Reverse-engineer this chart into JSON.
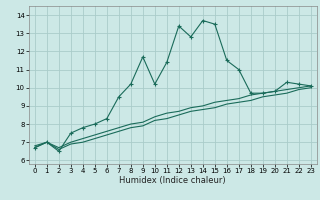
{
  "xlabel": "Humidex (Indice chaleur)",
  "background_color": "#cce8e6",
  "grid_color": "#aaccca",
  "line_color": "#1a6b5a",
  "xlim": [
    -0.5,
    23.5
  ],
  "ylim": [
    5.8,
    14.5
  ],
  "xticks": [
    0,
    1,
    2,
    3,
    4,
    5,
    6,
    7,
    8,
    9,
    10,
    11,
    12,
    13,
    14,
    15,
    16,
    17,
    18,
    19,
    20,
    21,
    22,
    23
  ],
  "yticks": [
    6,
    7,
    8,
    9,
    10,
    11,
    12,
    13,
    14
  ],
  "curve_main_x": [
    0,
    1,
    2,
    3,
    4,
    5,
    6,
    7,
    8,
    9,
    10,
    11,
    12,
    13,
    14,
    15,
    16,
    17,
    18,
    19,
    20,
    21,
    22,
    23
  ],
  "curve_main_y": [
    6.7,
    7.0,
    6.5,
    7.5,
    7.8,
    8.0,
    8.3,
    9.5,
    10.2,
    11.7,
    10.2,
    11.4,
    13.4,
    12.8,
    13.7,
    13.5,
    11.5,
    11.0,
    9.7,
    9.7,
    9.8,
    10.3,
    10.2,
    10.1
  ],
  "curve_line1_x": [
    0,
    1,
    2,
    3,
    4,
    5,
    6,
    7,
    8,
    9,
    10,
    11,
    12,
    13,
    14,
    15,
    16,
    17,
    18,
    19,
    20,
    21,
    22,
    23
  ],
  "curve_line1_y": [
    6.7,
    7.0,
    6.6,
    6.9,
    7.0,
    7.2,
    7.4,
    7.6,
    7.8,
    7.9,
    8.2,
    8.3,
    8.5,
    8.7,
    8.8,
    8.9,
    9.1,
    9.2,
    9.3,
    9.5,
    9.6,
    9.7,
    9.9,
    10.0
  ],
  "curve_line2_x": [
    0,
    1,
    2,
    3,
    4,
    5,
    6,
    7,
    8,
    9,
    10,
    11,
    12,
    13,
    14,
    15,
    16,
    17,
    18,
    19,
    20,
    21,
    22,
    23
  ],
  "curve_line2_y": [
    6.8,
    7.0,
    6.7,
    7.0,
    7.2,
    7.4,
    7.6,
    7.8,
    8.0,
    8.1,
    8.4,
    8.6,
    8.7,
    8.9,
    9.0,
    9.2,
    9.3,
    9.4,
    9.6,
    9.7,
    9.8,
    9.9,
    10.0,
    10.1
  ]
}
